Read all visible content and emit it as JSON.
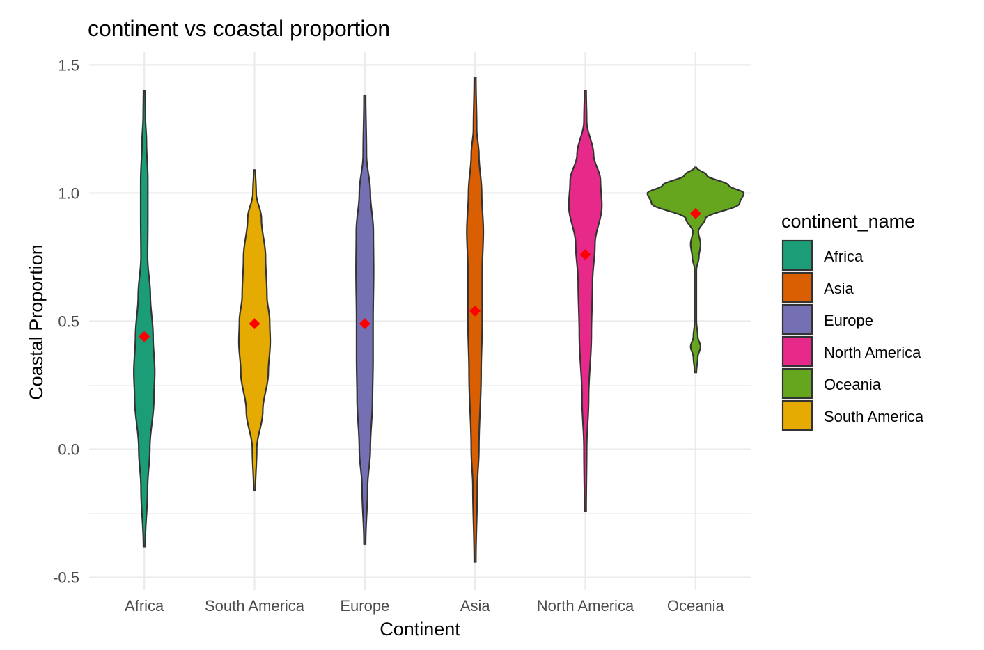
{
  "chart_data": {
    "type": "violin",
    "title": "continent vs coastal proportion",
    "xlabel": "Continent",
    "ylabel": "Coastal Proportion",
    "ylim": [
      -0.55,
      1.55
    ],
    "yticks": [
      -0.5,
      0.0,
      0.5,
      1.0,
      1.5
    ],
    "ytick_labels": [
      "-0.5",
      "0.0",
      "0.5",
      "1.0",
      "1.5"
    ],
    "grid": true,
    "categories": [
      "Africa",
      "South America",
      "Europe",
      "Asia",
      "North America",
      "Oceania"
    ],
    "mean_marker_color": "#ff0000",
    "legend": {
      "title": "continent_name",
      "placement": "right",
      "entries": [
        {
          "label": "Africa",
          "color": "#1b9e77"
        },
        {
          "label": "Asia",
          "color": "#d95f02"
        },
        {
          "label": "Europe",
          "color": "#7570b3"
        },
        {
          "label": "North America",
          "color": "#e7298a"
        },
        {
          "label": "Oceania",
          "color": "#66a61e"
        },
        {
          "label": "South America",
          "color": "#e6ab02"
        }
      ]
    },
    "series": [
      {
        "category": "Africa",
        "color": "#1b9e77",
        "mean": 0.44,
        "min": -0.38,
        "max": 1.4,
        "profile": [
          [
            -0.38,
            0.03
          ],
          [
            -0.15,
            0.12
          ],
          [
            0.0,
            0.2
          ],
          [
            0.2,
            0.35
          ],
          [
            0.3,
            0.38
          ],
          [
            0.44,
            0.32
          ],
          [
            0.6,
            0.22
          ],
          [
            0.75,
            0.12
          ],
          [
            0.9,
            0.13
          ],
          [
            1.05,
            0.13
          ],
          [
            1.2,
            0.08
          ],
          [
            1.3,
            0.04
          ],
          [
            1.4,
            0.03
          ]
        ]
      },
      {
        "category": "South America",
        "color": "#e6ab02",
        "mean": 0.49,
        "min": -0.16,
        "max": 1.09,
        "profile": [
          [
            -0.16,
            0.03
          ],
          [
            0.0,
            0.08
          ],
          [
            0.15,
            0.3
          ],
          [
            0.3,
            0.5
          ],
          [
            0.42,
            0.57
          ],
          [
            0.5,
            0.55
          ],
          [
            0.6,
            0.45
          ],
          [
            0.75,
            0.4
          ],
          [
            0.9,
            0.25
          ],
          [
            1.0,
            0.06
          ],
          [
            1.09,
            0.03
          ]
        ]
      },
      {
        "category": "Europe",
        "color": "#7570b3",
        "mean": 0.49,
        "min": -0.37,
        "max": 1.38,
        "profile": [
          [
            -0.37,
            0.03
          ],
          [
            -0.15,
            0.1
          ],
          [
            0.0,
            0.2
          ],
          [
            0.2,
            0.28
          ],
          [
            0.35,
            0.3
          ],
          [
            0.5,
            0.3
          ],
          [
            0.7,
            0.32
          ],
          [
            0.85,
            0.31
          ],
          [
            1.0,
            0.2
          ],
          [
            1.15,
            0.06
          ],
          [
            1.38,
            0.03
          ]
        ]
      },
      {
        "category": "Asia",
        "color": "#d95f02",
        "mean": 0.54,
        "min": -0.44,
        "max": 1.45,
        "profile": [
          [
            -0.44,
            0.03
          ],
          [
            -0.15,
            0.08
          ],
          [
            0.0,
            0.14
          ],
          [
            0.3,
            0.22
          ],
          [
            0.5,
            0.26
          ],
          [
            0.7,
            0.26
          ],
          [
            0.85,
            0.3
          ],
          [
            1.0,
            0.24
          ],
          [
            1.15,
            0.14
          ],
          [
            1.25,
            0.06
          ],
          [
            1.45,
            0.03
          ]
        ]
      },
      {
        "category": "North America",
        "color": "#e7298a",
        "mean": 0.76,
        "min": -0.24,
        "max": 1.4,
        "profile": [
          [
            -0.24,
            0.03
          ],
          [
            0.0,
            0.05
          ],
          [
            0.2,
            0.12
          ],
          [
            0.45,
            0.22
          ],
          [
            0.65,
            0.26
          ],
          [
            0.8,
            0.35
          ],
          [
            0.95,
            0.6
          ],
          [
            1.05,
            0.55
          ],
          [
            1.15,
            0.3
          ],
          [
            1.28,
            0.05
          ],
          [
            1.4,
            0.03
          ]
        ]
      },
      {
        "category": "Oceania",
        "color": "#66a61e",
        "mean": 0.92,
        "min": 0.3,
        "max": 1.1,
        "profile": [
          [
            0.3,
            0.03
          ],
          [
            0.36,
            0.08
          ],
          [
            0.4,
            0.18
          ],
          [
            0.44,
            0.08
          ],
          [
            0.5,
            0.03
          ],
          [
            0.7,
            0.03
          ],
          [
            0.75,
            0.12
          ],
          [
            0.8,
            0.18
          ],
          [
            0.85,
            0.1
          ],
          [
            0.9,
            0.35
          ],
          [
            0.96,
            1.6
          ],
          [
            1.0,
            1.75
          ],
          [
            1.03,
            1.2
          ],
          [
            1.07,
            0.4
          ],
          [
            1.1,
            0.03
          ]
        ]
      }
    ]
  }
}
